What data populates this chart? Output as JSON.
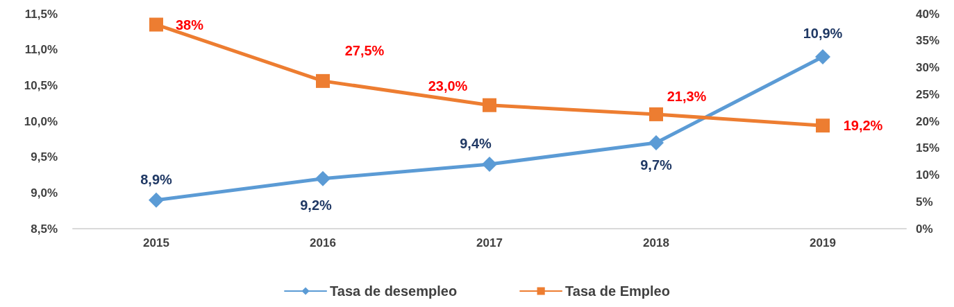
{
  "chart_data": {
    "type": "line",
    "categories": [
      "2015",
      "2016",
      "2017",
      "2018",
      "2019"
    ],
    "series": [
      {
        "name": "Tasa de desempleo",
        "color": "#5b9bd5",
        "marker": "diamond",
        "values": [
          8.9,
          9.2,
          9.4,
          9.7,
          10.9
        ],
        "value_labels": [
          "8,9%",
          "9,2%",
          "9,4%",
          "9,7%",
          "10,9%"
        ]
      },
      {
        "name": "Tasa de Empleo",
        "color": "#ed7d31",
        "marker": "square",
        "axis": "y2",
        "values": [
          38,
          27.5,
          23.0,
          21.3,
          19.2
        ],
        "value_labels": [
          "38%",
          "27,5%",
          "23,0%",
          "21,3%",
          "19,2%"
        ]
      }
    ],
    "ylim": [
      8.5,
      11.5
    ],
    "yticks": [
      {
        "value": 8.5,
        "label": "8,5%"
      },
      {
        "value": 9.0,
        "label": "9,0%"
      },
      {
        "value": 9.5,
        "label": "9,5%"
      },
      {
        "value": 10.0,
        "label": "10,0%"
      },
      {
        "value": 10.5,
        "label": "10,5%"
      },
      {
        "value": 11.0,
        "label": "11,0%"
      },
      {
        "value": 11.5,
        "label": "11,5%"
      }
    ],
    "y2lim": [
      0,
      40
    ],
    "y2ticks": [
      {
        "value": 0,
        "label": "0%"
      },
      {
        "value": 5,
        "label": "5%"
      },
      {
        "value": 10,
        "label": "10%"
      },
      {
        "value": 15,
        "label": "15%"
      },
      {
        "value": 20,
        "label": "20%"
      },
      {
        "value": 25,
        "label": "25%"
      },
      {
        "value": 30,
        "label": "30%"
      },
      {
        "value": 35,
        "label": "35%"
      },
      {
        "value": 40,
        "label": "40%"
      }
    ],
    "grid": false,
    "legend": "bottom"
  }
}
